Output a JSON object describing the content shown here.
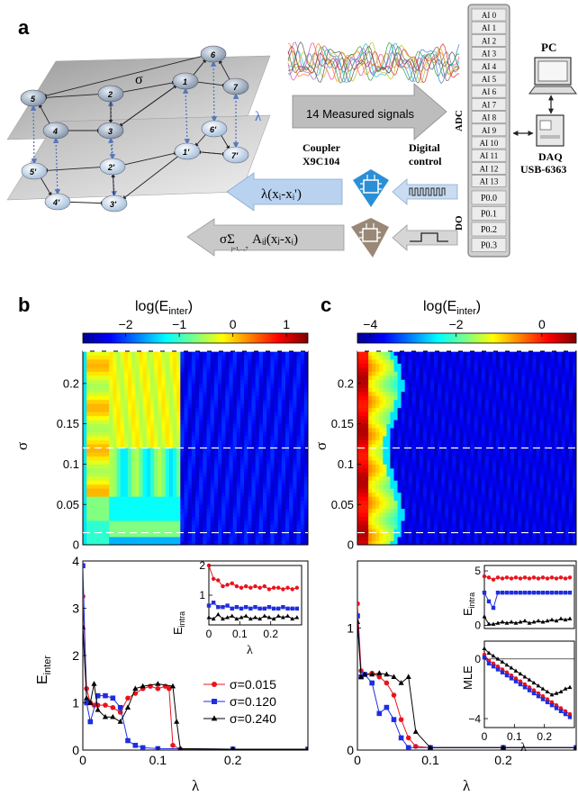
{
  "panel_labels": {
    "a": "a",
    "b": "b",
    "c": "c"
  },
  "schematic": {
    "sigma": "σ",
    "lambda": "λ",
    "upper_nodes": [
      "1",
      "2",
      "3",
      "4",
      "5",
      "6",
      "7"
    ],
    "lower_nodes": [
      "1'",
      "2'",
      "3'",
      "4'",
      "5'",
      "6'",
      "7'"
    ],
    "measured_signals": "14 Measured signals",
    "adc_label": "ADC",
    "do_label": "DO",
    "digital_control": [
      "Digital",
      "control"
    ],
    "coupler": [
      "Coupler",
      "X9C104"
    ],
    "ai_channels": [
      "AI 0",
      "AI 1",
      "AI 2",
      "AI 3",
      "AI 4",
      "AI 5",
      "AI 6",
      "AI 7",
      "AI 8",
      "AI 9",
      "AI 10",
      "AI 11",
      "AI 12",
      "AI 13"
    ],
    "do_channels": [
      "P0.0",
      "P0.1",
      "P0.2",
      "P0.3"
    ],
    "pc": "PC",
    "daq": [
      "DAQ",
      "USB-6363"
    ],
    "inter_formula": "λ(xᵢ-xᵢ')",
    "intra_formula_lead": "σΣ",
    "intra_formula_rest": "Aᵢⱼ(xⱼ-xᵢ)",
    "intra_formula_sub": "j=1,...,7"
  },
  "colors": {
    "red": "#e8141c",
    "blue": "#1f2de0",
    "black": "#000000",
    "heat_low": "#00008f",
    "heat_high": "#7f0000"
  },
  "chart_data": [
    {
      "id": "b-heatmap",
      "type": "heatmap",
      "colorbar_label": "log(E",
      "colorbar_label_sub": "inter",
      "colorbar_ticks": [
        "−2",
        "−1",
        "0",
        "1"
      ],
      "colorbar_range": [
        -2.8,
        1.4
      ],
      "ylabel": "σ",
      "yticks": [
        "0",
        "0.05",
        "0.1",
        "0.15",
        "0.2"
      ],
      "ylim": [
        0,
        0.24
      ],
      "xlim": [
        0,
        0.3
      ],
      "dashed_sigma": [
        0.015,
        0.12,
        0.24
      ]
    },
    {
      "id": "b-lines",
      "type": "line",
      "xlabel": "λ",
      "ylabel": "E",
      "ylabel_sub": "inter",
      "xticks": [
        "0",
        "0.1",
        "0.2"
      ],
      "yticks": [
        "0",
        "1",
        "2",
        "3",
        "4"
      ],
      "xlim": [
        0,
        0.3
      ],
      "ylim": [
        0,
        4
      ],
      "series": [
        {
          "name": "σ=0.015",
          "color": "red",
          "marker": "circle",
          "x": [
            0,
            0.005,
            0.01,
            0.015,
            0.02,
            0.03,
            0.04,
            0.05,
            0.06,
            0.07,
            0.08,
            0.09,
            0.1,
            0.11,
            0.115,
            0.12,
            0.13,
            0.2,
            0.3
          ],
          "y": [
            3.25,
            1.3,
            1.0,
            0.95,
            0.95,
            0.95,
            0.9,
            0.8,
            1.1,
            1.2,
            1.3,
            1.35,
            1.3,
            1.35,
            1.3,
            0.1,
            0.02,
            0.02,
            0.02
          ]
        },
        {
          "name": "σ=0.120",
          "color": "blue",
          "marker": "square",
          "x": [
            0,
            0.005,
            0.01,
            0.02,
            0.03,
            0.04,
            0.05,
            0.06,
            0.07,
            0.08,
            0.1,
            0.2,
            0.3
          ],
          "y": [
            3.9,
            1.0,
            0.6,
            1.15,
            1.15,
            1.1,
            0.9,
            0.2,
            0.1,
            0.05,
            0.03,
            0.02,
            0.02
          ]
        },
        {
          "name": "σ=0.240",
          "color": "black",
          "marker": "triangle",
          "x": [
            0,
            0.005,
            0.01,
            0.015,
            0.02,
            0.03,
            0.04,
            0.05,
            0.06,
            0.07,
            0.08,
            0.1,
            0.12,
            0.125,
            0.13,
            0.2,
            0.3
          ],
          "y": [
            2.6,
            1.1,
            1.0,
            1.4,
            0.85,
            0.7,
            0.7,
            0.6,
            0.9,
            1.3,
            1.35,
            1.4,
            1.35,
            0.6,
            0.03,
            0.02,
            0.02
          ]
        }
      ],
      "legend": "right"
    },
    {
      "id": "b-inset",
      "type": "line",
      "xlabel": "λ",
      "ylabel": "E",
      "ylabel_sub": "intra",
      "xticks": [
        "0",
        "0.1",
        "0.2"
      ],
      "yticks": [
        "1",
        "2"
      ],
      "xlim": [
        0,
        0.3
      ],
      "ylim": [
        0,
        2
      ],
      "series": [
        {
          "color": "red",
          "marker": "circle",
          "x": [
            0,
            0.015,
            0.03,
            0.045,
            0.06,
            0.075,
            0.09,
            0.105,
            0.12,
            0.135,
            0.15,
            0.165,
            0.18,
            0.195,
            0.21,
            0.225,
            0.24,
            0.255,
            0.27,
            0.285
          ],
          "y": [
            2.0,
            1.55,
            1.5,
            1.3,
            1.35,
            1.4,
            1.3,
            1.25,
            1.3,
            1.25,
            1.3,
            1.25,
            1.3,
            1.2,
            1.25,
            1.25,
            1.2,
            1.25,
            1.2,
            1.25
          ]
        },
        {
          "color": "blue",
          "marker": "square",
          "x": [
            0,
            0.015,
            0.03,
            0.045,
            0.06,
            0.075,
            0.09,
            0.105,
            0.12,
            0.135,
            0.15,
            0.165,
            0.18,
            0.195,
            0.21,
            0.225,
            0.24,
            0.255,
            0.27,
            0.285
          ],
          "y": [
            0.65,
            0.75,
            0.6,
            0.6,
            0.65,
            0.55,
            0.6,
            0.55,
            0.6,
            0.55,
            0.6,
            0.55,
            0.55,
            0.6,
            0.55,
            0.55,
            0.6,
            0.55,
            0.55,
            0.55
          ]
        },
        {
          "color": "black",
          "marker": "triangle",
          "x": [
            0,
            0.015,
            0.03,
            0.045,
            0.06,
            0.075,
            0.09,
            0.105,
            0.12,
            0.135,
            0.15,
            0.165,
            0.18,
            0.195,
            0.21,
            0.225,
            0.24,
            0.255,
            0.27,
            0.285
          ],
          "y": [
            0.25,
            0.2,
            0.35,
            0.2,
            0.25,
            0.3,
            0.2,
            0.25,
            0.3,
            0.2,
            0.25,
            0.2,
            0.3,
            0.25,
            0.2,
            0.3,
            0.25,
            0.3,
            0.2,
            0.25
          ]
        }
      ]
    },
    {
      "id": "c-heatmap",
      "type": "heatmap",
      "colorbar_label": "log(E",
      "colorbar_label_sub": "inter",
      "colorbar_ticks": [
        "−4",
        "−2",
        "0"
      ],
      "colorbar_range": [
        -4.3,
        0.8
      ],
      "ylabel": "σ",
      "yticks": [
        "0",
        "0.05",
        "0.1",
        "0.15",
        "0.2"
      ],
      "ylim": [
        0,
        0.24
      ],
      "xlim": [
        0,
        0.3
      ],
      "dashed_sigma": [
        0.015,
        0.12,
        0.24
      ]
    },
    {
      "id": "c-lines",
      "type": "line",
      "xlabel": "λ",
      "xticks": [
        "0",
        "0.1",
        "0.2"
      ],
      "yticks": [
        "0",
        "1"
      ],
      "xlim": [
        0,
        0.3
      ],
      "ylim": [
        0,
        1.55
      ],
      "series": [
        {
          "color": "red",
          "marker": "circle",
          "x": [
            0,
            0.005,
            0.01,
            0.02,
            0.03,
            0.04,
            0.05,
            0.06,
            0.07,
            0.08,
            0.1,
            0.2,
            0.3
          ],
          "y": [
            1.2,
            0.65,
            0.62,
            0.63,
            0.6,
            0.55,
            0.45,
            0.25,
            0.1,
            0.03,
            0.02,
            0.02,
            0.02
          ]
        },
        {
          "color": "blue",
          "marker": "square",
          "x": [
            0,
            0.005,
            0.01,
            0.02,
            0.03,
            0.04,
            0.05,
            0.06,
            0.07,
            0.1,
            0.2,
            0.3
          ],
          "y": [
            1.1,
            0.6,
            0.62,
            0.55,
            0.3,
            0.35,
            0.25,
            0.1,
            0.02,
            0.02,
            0.02,
            0.02
          ]
        },
        {
          "color": "black",
          "marker": "triangle",
          "x": [
            0,
            0.005,
            0.01,
            0.02,
            0.03,
            0.04,
            0.05,
            0.06,
            0.07,
            0.08,
            0.1,
            0.2,
            0.3
          ],
          "y": [
            1.05,
            0.6,
            0.62,
            0.62,
            0.63,
            0.62,
            0.6,
            0.55,
            0.6,
            0.15,
            0.02,
            0.02,
            0.02
          ]
        }
      ]
    },
    {
      "id": "c-inset-top",
      "type": "line",
      "ylabel": "E",
      "ylabel_sub": "intra",
      "yticks": [
        "0",
        "5"
      ],
      "xlim": [
        0,
        0.3
      ],
      "ylim": [
        -0.3,
        5.5
      ],
      "series": [
        {
          "color": "red",
          "marker": "circle",
          "x": [
            0,
            0.015,
            0.03,
            0.045,
            0.06,
            0.075,
            0.09,
            0.105,
            0.12,
            0.135,
            0.15,
            0.165,
            0.18,
            0.195,
            0.21,
            0.225,
            0.24,
            0.255,
            0.27,
            0.285
          ],
          "y": [
            4.5,
            4.4,
            4.2,
            4.4,
            4.3,
            4.4,
            4.3,
            4.4,
            4.3,
            4.4,
            4.3,
            4.4,
            4.3,
            4.4,
            4.3,
            4.4,
            4.3,
            4.4,
            4.3,
            4.4
          ]
        },
        {
          "color": "blue",
          "marker": "square",
          "x": [
            0,
            0.015,
            0.03,
            0.045,
            0.06,
            0.075,
            0.09,
            0.105,
            0.12,
            0.135,
            0.15,
            0.165,
            0.18,
            0.195,
            0.21,
            0.225,
            0.24,
            0.255,
            0.27,
            0.285
          ],
          "y": [
            3.0,
            2.2,
            1.6,
            3.0,
            3.0,
            3.0,
            3.0,
            3.0,
            3.0,
            3.0,
            3.0,
            3.0,
            3.0,
            3.0,
            3.0,
            3.0,
            3.0,
            3.0,
            3.0,
            3.0
          ]
        },
        {
          "color": "black",
          "marker": "triangle",
          "x": [
            0,
            0.015,
            0.03,
            0.045,
            0.06,
            0.075,
            0.09,
            0.105,
            0.12,
            0.135,
            0.15,
            0.165,
            0.18,
            0.195,
            0.21,
            0.225,
            0.24,
            0.255,
            0.27,
            0.285
          ],
          "y": [
            0.8,
            0.1,
            0.1,
            0.2,
            0.3,
            0.2,
            0.3,
            0.2,
            0.3,
            0.4,
            0.2,
            0.3,
            0.4,
            0.3,
            0.4,
            0.5,
            0.4,
            0.6,
            0.5,
            0.6
          ]
        }
      ]
    },
    {
      "id": "c-inset-bottom",
      "type": "line",
      "xlabel": "λ",
      "ylabel": "MLE",
      "xticks": [
        "0",
        "0.1",
        "0.2"
      ],
      "yticks": [
        "0",
        "−4"
      ],
      "xlim": [
        0,
        0.3
      ],
      "ylim": [
        -4.6,
        1.2
      ],
      "series": [
        {
          "color": "red",
          "marker": "circle",
          "x": [
            0,
            0.015,
            0.03,
            0.045,
            0.06,
            0.075,
            0.09,
            0.105,
            0.12,
            0.135,
            0.15,
            0.165,
            0.18,
            0.195,
            0.21,
            0.225,
            0.24,
            0.255,
            0.27,
            0.285
          ],
          "y": [
            0.3,
            -0.1,
            -0.3,
            -0.5,
            -0.7,
            -0.9,
            -1.1,
            -1.3,
            -1.5,
            -1.7,
            -1.9,
            -2.1,
            -2.3,
            -2.5,
            -2.7,
            -2.9,
            -3.1,
            -3.3,
            -3.5,
            -3.7
          ]
        },
        {
          "color": "blue",
          "marker": "square",
          "x": [
            0,
            0.015,
            0.03,
            0.045,
            0.06,
            0.075,
            0.09,
            0.105,
            0.12,
            0.135,
            0.15,
            0.165,
            0.18,
            0.195,
            0.21,
            0.225,
            0.24,
            0.255,
            0.27,
            0.285
          ],
          "y": [
            0.1,
            -0.3,
            -0.5,
            -0.7,
            -0.9,
            -1.1,
            -1.3,
            -1.5,
            -1.7,
            -1.9,
            -2.1,
            -2.3,
            -2.5,
            -2.7,
            -2.9,
            -3.1,
            -3.3,
            -3.5,
            -3.7,
            -3.9
          ]
        },
        {
          "color": "black",
          "marker": "triangle",
          "x": [
            0,
            0.015,
            0.03,
            0.045,
            0.06,
            0.075,
            0.09,
            0.105,
            0.12,
            0.135,
            0.15,
            0.165,
            0.18,
            0.195,
            0.21,
            0.225,
            0.24,
            0.255,
            0.27,
            0.285
          ],
          "y": [
            0.7,
            0.4,
            0.2,
            0.0,
            -0.2,
            -0.4,
            -0.6,
            -0.8,
            -1.0,
            -1.2,
            -1.4,
            -1.6,
            -1.8,
            -2.0,
            -2.2,
            -2.4,
            -2.3,
            -2.2,
            -2.0,
            -1.9
          ]
        }
      ]
    }
  ]
}
